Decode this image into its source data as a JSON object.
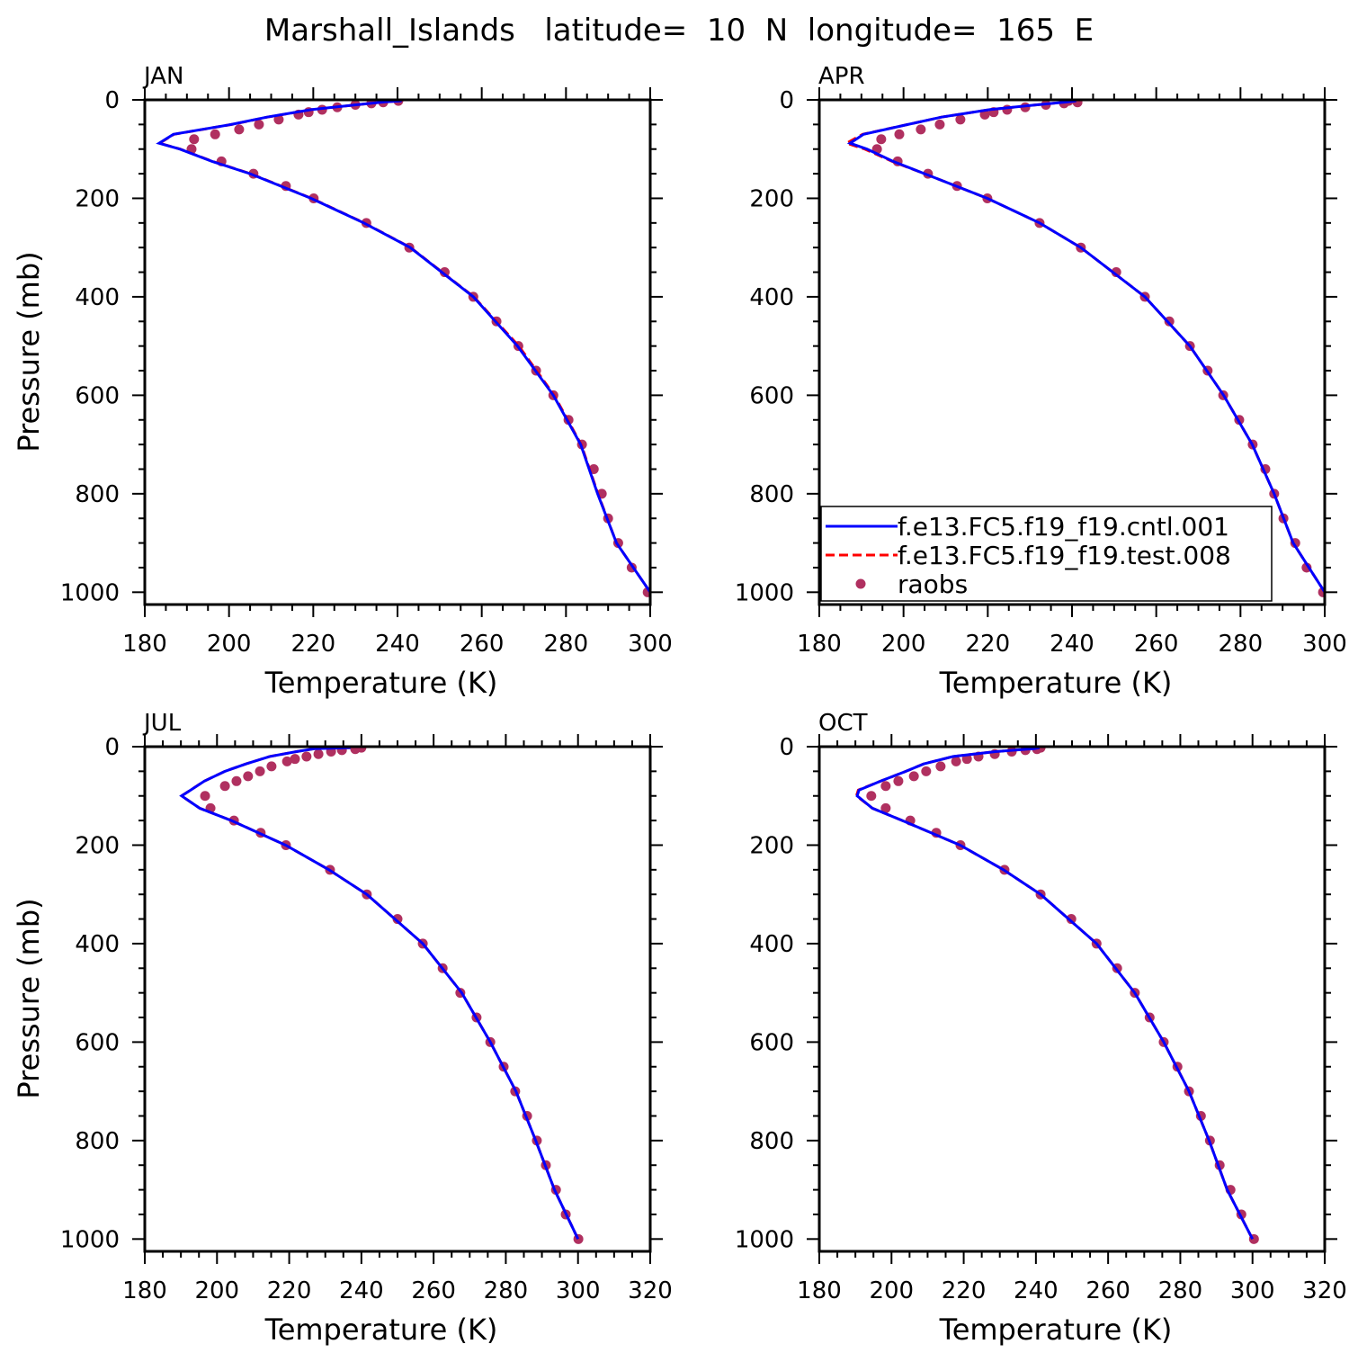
{
  "chart_data": {
    "type": "line",
    "title": "Marshall_Islands   latitude=  10  N  longitude=  165  E",
    "colors": {
      "cntl": "#0000ff",
      "test": "#ff0000",
      "raobs": "#b03060"
    },
    "legend": {
      "placement": "inside APR panel, bottom-left",
      "entries": [
        {
          "key": "cntl",
          "label": "f.e13.FC5.f19_f19.cntl.001",
          "style": "solid"
        },
        {
          "key": "test",
          "label": "f.e13.FC5.f19_f19.test.008",
          "style": "dashed"
        },
        {
          "key": "raobs",
          "label": "raobs",
          "style": "marker"
        }
      ]
    },
    "raobs_pressure": [
      1000,
      950,
      900,
      850,
      800,
      750,
      700,
      650,
      600,
      550,
      500,
      450,
      400,
      350,
      300,
      250,
      200,
      175,
      150,
      125,
      100,
      80,
      70,
      60,
      50,
      40,
      30,
      25,
      20,
      15,
      10,
      7,
      5,
      2
    ],
    "model_pressure": [
      1000,
      900,
      800,
      700,
      600,
      500,
      400,
      300,
      250,
      200,
      150,
      125,
      100,
      88,
      70,
      50,
      35,
      20,
      10,
      4,
      2
    ],
    "panels": [
      {
        "label": "JAN",
        "xlabel": "Temperature (K)",
        "ylabel": "Pressure (mb)",
        "xlim": [
          180,
          300
        ],
        "xticks": [
          180,
          200,
          220,
          240,
          260,
          280,
          300
        ],
        "ylim": [
          0,
          1025
        ],
        "yticks": [
          0,
          200,
          400,
          600,
          800,
          1000
        ],
        "raobs": [
          299.4,
          295.6,
          292.4,
          290.0,
          288.5,
          286.6,
          283.8,
          280.6,
          277.0,
          272.9,
          268.7,
          263.5,
          258.0,
          251.2,
          242.8,
          232.6,
          220.1,
          213.5,
          205.8,
          198.2,
          191.1,
          191.7,
          196.7,
          202.4,
          207.1,
          211.8,
          216.5,
          218.9,
          222.1,
          225.7,
          230.0,
          233.8,
          236.6,
          240.2
        ],
        "cntl": [
          300.0,
          292.0,
          287.5,
          283.5,
          277.0,
          268.5,
          258.0,
          243.0,
          232.0,
          219.5,
          205.0,
          196.0,
          188.3,
          183.4,
          186.8,
          200.5,
          209.0,
          219.5,
          230.2,
          237.0,
          241.0
        ],
        "test": [
          300.0,
          292.0,
          287.6,
          283.6,
          277.2,
          268.8,
          258.1,
          243.1,
          232.1,
          219.6,
          205.1,
          196.1,
          188.4,
          183.5,
          186.9,
          200.6,
          209.1,
          219.6,
          230.3,
          237.1,
          241.0
        ]
      },
      {
        "label": "APR",
        "xlabel": "Temperature (K)",
        "ylabel": "",
        "xlim": [
          180,
          300
        ],
        "xticks": [
          180,
          200,
          220,
          240,
          260,
          280,
          300
        ],
        "ylim": [
          0,
          1025
        ],
        "yticks": [
          0,
          200,
          400,
          600,
          800,
          1000
        ],
        "raobs": [
          299.6,
          295.7,
          293.0,
          290.2,
          288.0,
          285.9,
          282.9,
          279.7,
          275.9,
          272.2,
          268.0,
          263.1,
          257.3,
          250.5,
          242.1,
          232.3,
          219.9,
          212.7,
          205.8,
          198.6,
          193.7,
          194.7,
          199.0,
          204.1,
          208.6,
          213.5,
          219.3,
          221.4,
          224.6,
          228.9,
          233.8,
          238.1,
          241.3,
          239.2
        ],
        "cntl": [
          300.0,
          292.5,
          288.0,
          282.8,
          276.0,
          268.0,
          257.3,
          242.1,
          232.3,
          219.9,
          205.0,
          197.5,
          191.3,
          187.3,
          190.5,
          201.0,
          209.0,
          220.4,
          231.7,
          239.0,
          241.0
        ],
        "test": [
          300.0,
          292.5,
          288.0,
          282.8,
          276.0,
          268.0,
          257.3,
          242.1,
          232.3,
          219.9,
          205.0,
          197.3,
          190.8,
          186.5,
          190.3,
          201.0,
          209.0,
          220.4,
          231.7,
          239.0,
          241.0
        ]
      },
      {
        "label": "JUL",
        "xlabel": "Temperature (K)",
        "ylabel": "Pressure (mb)",
        "xlim": [
          180,
          320
        ],
        "xticks": [
          180,
          200,
          220,
          240,
          260,
          280,
          300,
          320
        ],
        "ylim": [
          0,
          1025
        ],
        "yticks": [
          0,
          200,
          400,
          600,
          800,
          1000
        ],
        "raobs": [
          300.1,
          296.6,
          293.9,
          291.1,
          288.6,
          285.9,
          282.6,
          279.4,
          275.7,
          271.9,
          267.4,
          262.5,
          257.0,
          250.0,
          241.5,
          231.3,
          219.1,
          212.1,
          204.7,
          198.2,
          196.7,
          202.2,
          205.4,
          208.6,
          211.9,
          215.1,
          219.4,
          221.6,
          224.8,
          228.1,
          231.6,
          234.6,
          238.3,
          240.0
        ],
        "cntl": [
          300.0,
          293.5,
          288.3,
          282.8,
          275.7,
          267.8,
          257.0,
          241.5,
          231.0,
          219.0,
          204.0,
          195.2,
          190.2,
          192.7,
          196.5,
          202.2,
          208.0,
          214.6,
          222.0,
          227.1,
          237.0
        ],
        "test": [
          300.0,
          293.5,
          288.3,
          282.8,
          275.7,
          267.8,
          257.0,
          241.5,
          231.0,
          219.0,
          204.0,
          195.2,
          190.2,
          192.7,
          196.5,
          202.2,
          208.0,
          214.6,
          222.0,
          227.1,
          237.0
        ]
      },
      {
        "label": "OCT",
        "xlabel": "Temperature (K)",
        "ylabel": "",
        "xlim": [
          180,
          320
        ],
        "xticks": [
          180,
          200,
          220,
          240,
          260,
          280,
          300,
          320
        ],
        "ylim": [
          0,
          1025
        ],
        "yticks": [
          0,
          200,
          400,
          600,
          800,
          1000
        ],
        "raobs": [
          300.4,
          296.9,
          293.9,
          290.9,
          288.2,
          285.7,
          282.4,
          279.2,
          275.4,
          271.5,
          267.4,
          262.5,
          256.8,
          249.8,
          241.3,
          231.3,
          219.1,
          212.4,
          205.2,
          198.4,
          194.4,
          198.4,
          201.9,
          206.2,
          209.6,
          213.6,
          217.9,
          220.9,
          224.1,
          228.6,
          233.3,
          237.1,
          240.3,
          241.3
        ],
        "cntl": [
          300.0,
          293.0,
          288.0,
          282.4,
          275.4,
          267.4,
          256.8,
          241.3,
          231.0,
          219.0,
          203.0,
          194.7,
          190.5,
          191.0,
          197.0,
          204.0,
          208.9,
          217.1,
          228.8,
          239.5,
          241.0
        ],
        "test": [
          300.0,
          293.0,
          288.0,
          282.4,
          275.4,
          267.4,
          256.8,
          241.3,
          231.0,
          219.0,
          203.0,
          194.7,
          190.3,
          190.8,
          197.0,
          204.0,
          208.9,
          217.1,
          228.8,
          239.5,
          241.0
        ]
      }
    ]
  }
}
